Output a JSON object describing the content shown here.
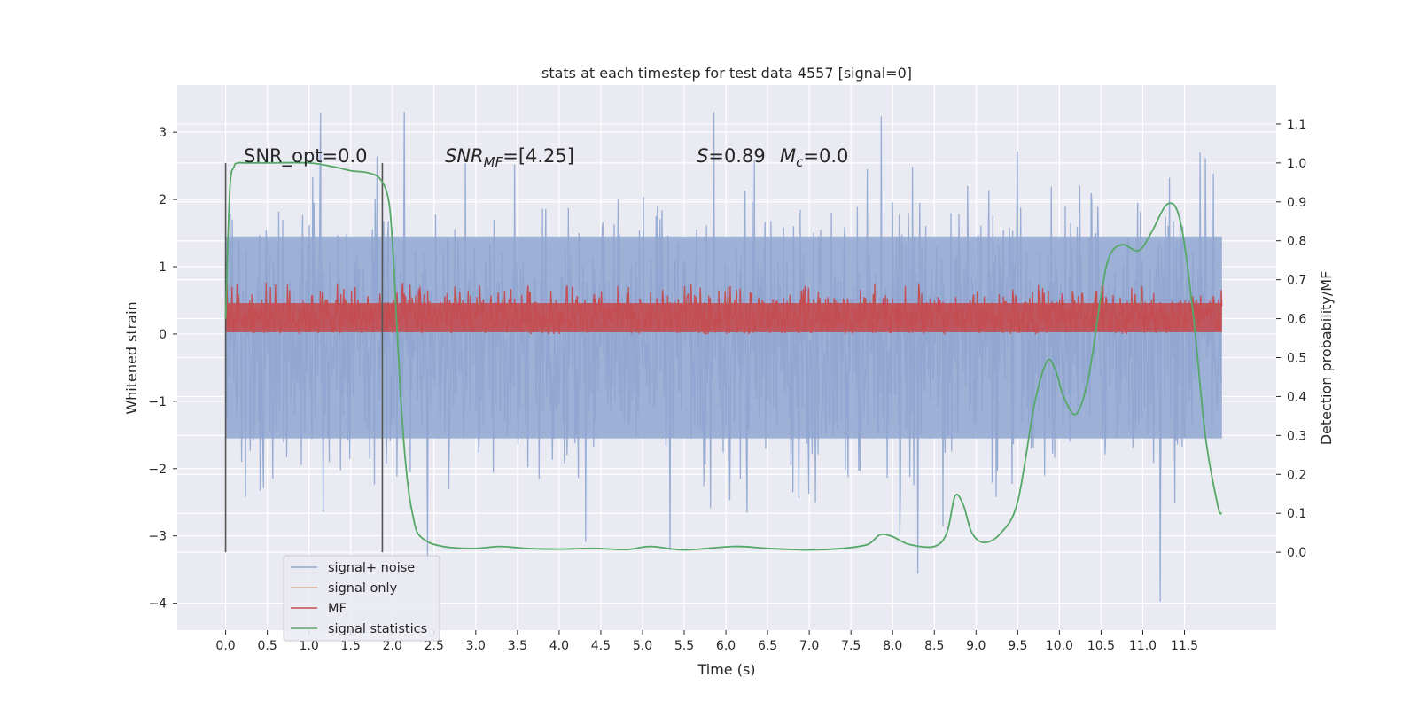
{
  "chart_data": {
    "type": "line",
    "title": "stats at each timestep for test data 4557 [signal=0]",
    "xlabel": "Time (s)",
    "ylabel": "Whitened strain",
    "y2label": "Detection probability/MF",
    "xlim": [
      -0.58,
      12.6
    ],
    "ylim": [
      -4.4,
      3.7
    ],
    "y2lim": [
      -0.2,
      1.2
    ],
    "x_ticks": [
      "0.0",
      "0.5",
      "1.0",
      "1.5",
      "2.0",
      "2.5",
      "3.0",
      "3.5",
      "4.0",
      "4.5",
      "5.0",
      "5.5",
      "6.0",
      "6.5",
      "7.0",
      "7.5",
      "8.0",
      "8.5",
      "9.0",
      "9.5",
      "10.0",
      "10.5",
      "11.0",
      "11.5"
    ],
    "y_ticks": [
      3,
      2,
      1,
      0,
      -1,
      -2,
      -3,
      -4
    ],
    "y_tick_labels": [
      "3",
      "2",
      "1",
      "0",
      "−1",
      "−2",
      "−3",
      "−4"
    ],
    "y2_ticks": [
      1.1,
      1.0,
      0.9,
      0.8,
      0.7,
      0.6,
      0.5,
      0.4,
      0.3,
      0.2,
      0.1,
      0.0
    ],
    "y2_tick_labels": [
      "1.1",
      "1.0",
      "0.9",
      "0.8",
      "0.7",
      "0.6",
      "0.5",
      "0.4",
      "0.3",
      "0.2",
      "0.1",
      "0.0"
    ],
    "grid": true,
    "legend_position": "lower-left",
    "annotations": {
      "snr_opt": "SNR_opt=0.0",
      "snr_mf_base": "SNR",
      "snr_mf_sub": "MF",
      "snr_mf_val": "=[4.25]",
      "s_sym": "S",
      "s_val": "=0.89",
      "mc_base": "M",
      "mc_sub": "c",
      "mc_val": "=0.0"
    },
    "vertical_lines_x": [
      0.0,
      1.88
    ],
    "series": [
      {
        "name": "signal+ noise",
        "color": "#8fa6d0",
        "axis": "left",
        "x_range": [
          0,
          11.95
        ],
        "core_range": [
          -1.55,
          1.45
        ],
        "envelope_typical": [
          -2.3,
          2.3
        ],
        "extremes": [
          -4.1,
          3.3
        ]
      },
      {
        "name": "signal only",
        "color": "#e8a58a",
        "axis": "left",
        "values": []
      },
      {
        "name": "MF",
        "color": "#c44e52",
        "axis": "right",
        "x_range": [
          0,
          11.95
        ],
        "band": [
          0.56,
          0.7
        ]
      },
      {
        "name": "signal statistics",
        "color": "#55a868",
        "axis": "right",
        "x": [
          0,
          0.05,
          0.1,
          0.15,
          0.25,
          0.5,
          1.0,
          1.3,
          1.5,
          1.7,
          1.85,
          1.95,
          2.0,
          2.05,
          2.1,
          2.15,
          2.2,
          2.25,
          2.3,
          2.4,
          2.5,
          2.7,
          3.0,
          3.3,
          3.6,
          4.0,
          4.4,
          4.8,
          5.1,
          5.5,
          6.1,
          6.5,
          7.0,
          7.4,
          7.7,
          7.85,
          8.0,
          8.2,
          8.5,
          8.65,
          8.75,
          8.85,
          8.95,
          9.1,
          9.3,
          9.5,
          9.7,
          9.85,
          9.95,
          10.05,
          10.2,
          10.35,
          10.5,
          10.6,
          10.75,
          10.95,
          11.1,
          11.3,
          11.45,
          11.6,
          11.75,
          11.9,
          11.95
        ],
        "values": [
          0.6,
          0.93,
          0.99,
          1.0,
          1.0,
          1.0,
          1.0,
          0.99,
          0.98,
          0.975,
          0.96,
          0.91,
          0.8,
          0.6,
          0.4,
          0.25,
          0.15,
          0.09,
          0.05,
          0.03,
          0.02,
          0.012,
          0.01,
          0.015,
          0.01,
          0.008,
          0.01,
          0.007,
          0.015,
          0.006,
          0.015,
          0.01,
          0.006,
          0.01,
          0.02,
          0.045,
          0.04,
          0.02,
          0.015,
          0.05,
          0.145,
          0.12,
          0.05,
          0.025,
          0.05,
          0.13,
          0.38,
          0.49,
          0.47,
          0.4,
          0.355,
          0.45,
          0.66,
          0.76,
          0.79,
          0.775,
          0.82,
          0.895,
          0.85,
          0.62,
          0.3,
          0.12,
          0.1
        ]
      }
    ]
  }
}
